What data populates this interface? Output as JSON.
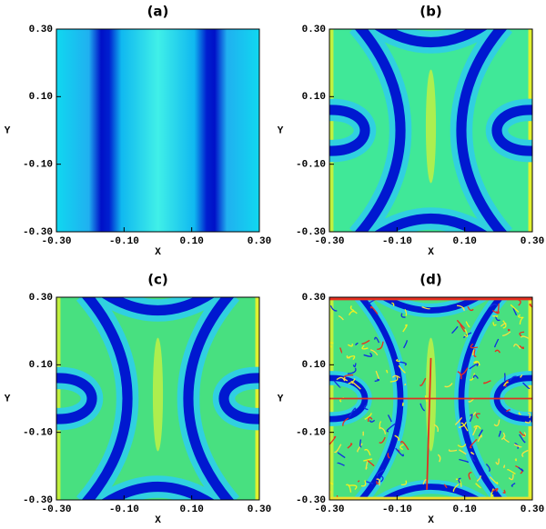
{
  "chart_data": [
    {
      "type": "image",
      "title": "(a)",
      "x_label": "X",
      "y_label": "Y",
      "xlim": [
        -0.3,
        0.3
      ],
      "ylim": [
        -0.3,
        0.3
      ],
      "xticks": [
        {
          "value": -0.3,
          "label": "-0.30"
        },
        {
          "value": -0.1,
          "label": "-0.10"
        },
        {
          "value": 0.1,
          "label": "0.10"
        },
        {
          "value": 0.3,
          "label": "0.30"
        }
      ],
      "yticks": [
        {
          "value": -0.3,
          "label": "-0.30"
        },
        {
          "value": -0.1,
          "label": "-0.10"
        },
        {
          "value": 0.1,
          "label": "0.10"
        },
        {
          "value": 0.3,
          "label": "0.30"
        }
      ]
    },
    {
      "type": "image",
      "title": "(b)",
      "x_label": "X",
      "y_label": "Y",
      "xlim": [
        -0.3,
        0.3
      ],
      "ylim": [
        -0.3,
        0.3
      ],
      "xticks": [
        {
          "value": -0.3,
          "label": "-0.30"
        },
        {
          "value": -0.1,
          "label": "-0.10"
        },
        {
          "value": 0.1,
          "label": "0.10"
        },
        {
          "value": 0.3,
          "label": "0.30"
        }
      ],
      "yticks": [
        {
          "value": -0.3,
          "label": "-0.30"
        },
        {
          "value": -0.1,
          "label": "-0.10"
        },
        {
          "value": 0.1,
          "label": "0.10"
        },
        {
          "value": 0.3,
          "label": "0.30"
        }
      ]
    },
    {
      "type": "image",
      "title": "(c)",
      "x_label": "X",
      "y_label": "Y",
      "xlim": [
        -0.3,
        0.3
      ],
      "ylim": [
        -0.3,
        0.3
      ],
      "xticks": [
        {
          "value": -0.3,
          "label": "-0.30"
        },
        {
          "value": -0.1,
          "label": "-0.10"
        },
        {
          "value": 0.1,
          "label": "0.10"
        },
        {
          "value": 0.3,
          "label": "0.30"
        }
      ],
      "yticks": [
        {
          "value": -0.3,
          "label": "-0.30"
        },
        {
          "value": -0.1,
          "label": "-0.10"
        },
        {
          "value": 0.1,
          "label": "0.10"
        },
        {
          "value": 0.3,
          "label": "0.30"
        }
      ]
    },
    {
      "type": "image",
      "title": "(d)",
      "x_label": "X",
      "y_label": "Y",
      "xlim": [
        -0.3,
        0.3
      ],
      "ylim": [
        -0.3,
        0.3
      ],
      "xticks": [
        {
          "value": -0.3,
          "label": "-0.30"
        },
        {
          "value": -0.1,
          "label": "-0.10"
        },
        {
          "value": 0.1,
          "label": "0.10"
        },
        {
          "value": 0.3,
          "label": "0.30"
        }
      ],
      "yticks": [
        {
          "value": -0.3,
          "label": "-0.30"
        },
        {
          "value": -0.1,
          "label": "-0.10"
        },
        {
          "value": 0.1,
          "label": "0.10"
        },
        {
          "value": 0.3,
          "label": "0.30"
        }
      ]
    }
  ]
}
